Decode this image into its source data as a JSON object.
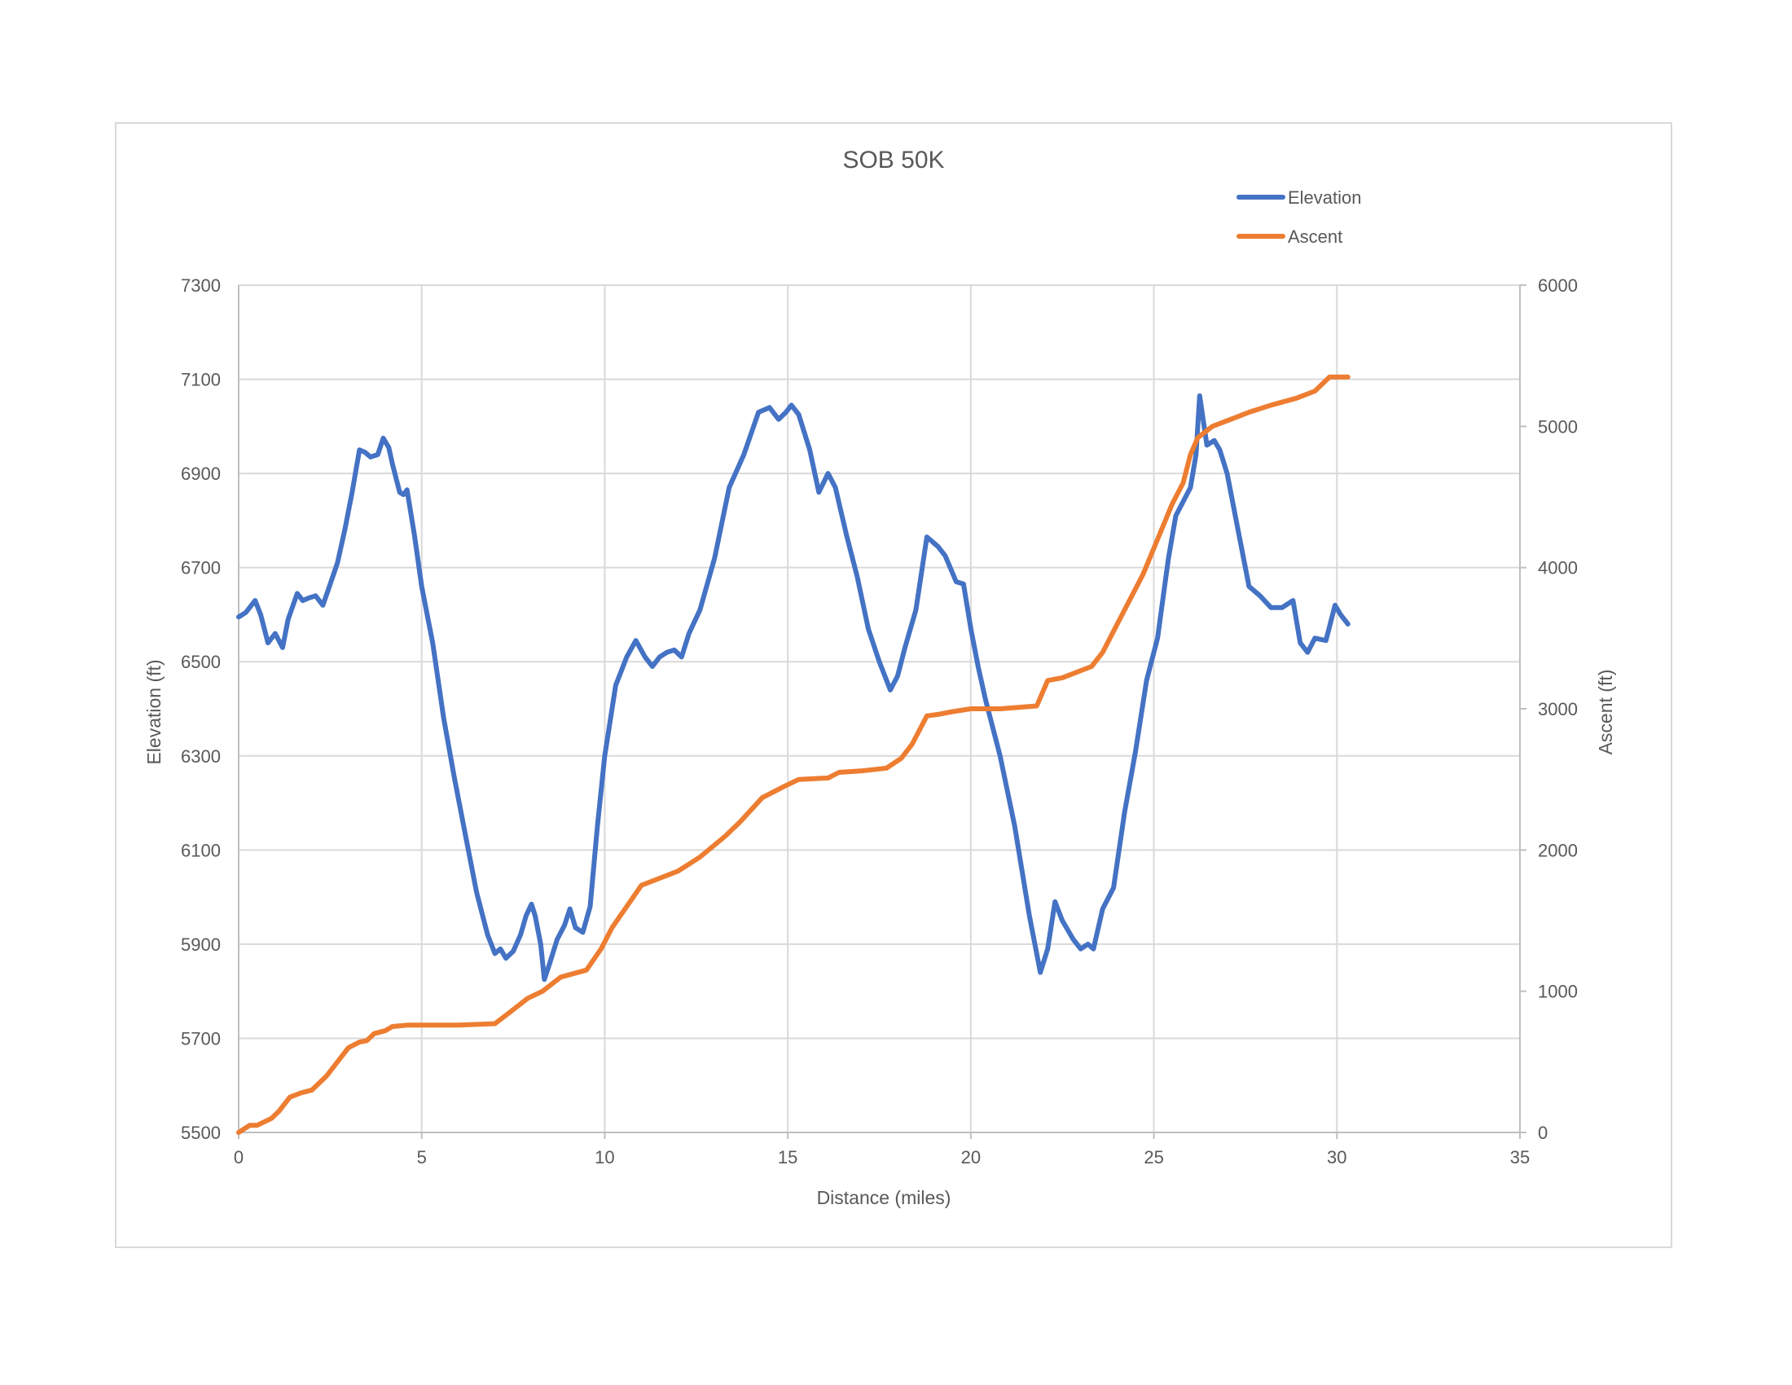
{
  "chart_data": {
    "type": "line",
    "title": "SOB 50K",
    "xlabel": "Distance (miles)",
    "ylabel": "Elevation (ft)",
    "y2label": "Ascent (ft)",
    "xlim": [
      0,
      35
    ],
    "ylim": [
      5500,
      7300
    ],
    "y2lim": [
      0,
      6000
    ],
    "xticks": [
      "0",
      "5",
      "10",
      "15",
      "20",
      "25",
      "30",
      "35"
    ],
    "yticks": [
      "5500",
      "5700",
      "5900",
      "6100",
      "6300",
      "6500",
      "6700",
      "6900",
      "7100",
      "7300"
    ],
    "y2ticks": [
      "0",
      "1000",
      "2000",
      "3000",
      "4000",
      "5000",
      "6000"
    ],
    "grid": true,
    "legend": "top-right",
    "series": [
      {
        "name": "Elevation",
        "axis": "left",
        "color": "#4472c4",
        "x": [
          0,
          0.2,
          0.45,
          0.6,
          0.8,
          1.0,
          1.2,
          1.35,
          1.6,
          1.75,
          1.9,
          2.1,
          2.3,
          2.5,
          2.7,
          2.9,
          3.1,
          3.3,
          3.45,
          3.6,
          3.8,
          3.95,
          4.1,
          4.2,
          4.4,
          4.5,
          4.6,
          4.8,
          5.0,
          5.3,
          5.6,
          5.9,
          6.2,
          6.5,
          6.8,
          7.0,
          7.15,
          7.3,
          7.5,
          7.7,
          7.85,
          8.0,
          8.1,
          8.25,
          8.35,
          8.5,
          8.7,
          8.9,
          9.05,
          9.2,
          9.4,
          9.6,
          9.8,
          10.0,
          10.3,
          10.6,
          10.85,
          11.1,
          11.3,
          11.5,
          11.7,
          11.9,
          12.1,
          12.3,
          12.6,
          13.0,
          13.4,
          13.8,
          14.2,
          14.5,
          14.75,
          14.95,
          15.1,
          15.3,
          15.6,
          15.85,
          16.1,
          16.3,
          16.6,
          16.9,
          17.2,
          17.5,
          17.8,
          18.0,
          18.2,
          18.5,
          18.8,
          19.1,
          19.3,
          19.6,
          19.8,
          20.0,
          20.2,
          20.4,
          20.8,
          21.2,
          21.6,
          21.9,
          22.1,
          22.3,
          22.5,
          22.8,
          23.0,
          23.2,
          23.35,
          23.6,
          23.9,
          24.2,
          24.5,
          24.8,
          25.1,
          25.4,
          25.6,
          25.8,
          26.0,
          26.15,
          26.25,
          26.45,
          26.65,
          26.8,
          27.0,
          27.3,
          27.6,
          27.9,
          28.2,
          28.5,
          28.8,
          29.0,
          29.2,
          29.4,
          29.7,
          29.95,
          30.1,
          30.3
        ],
        "y": [
          6595,
          6605,
          6630,
          6600,
          6540,
          6560,
          6530,
          6590,
          6645,
          6630,
          6635,
          6640,
          6620,
          6665,
          6710,
          6780,
          6860,
          6950,
          6945,
          6935,
          6940,
          6975,
          6955,
          6920,
          6860,
          6855,
          6865,
          6770,
          6660,
          6540,
          6380,
          6250,
          6130,
          6010,
          5920,
          5880,
          5890,
          5870,
          5885,
          5920,
          5960,
          5985,
          5960,
          5900,
          5825,
          5860,
          5910,
          5940,
          5975,
          5935,
          5925,
          5980,
          6150,
          6300,
          6450,
          6510,
          6545,
          6510,
          6490,
          6510,
          6520,
          6525,
          6510,
          6560,
          6610,
          6720,
          6870,
          6940,
          7030,
          7040,
          7015,
          7030,
          7045,
          7025,
          6950,
          6860,
          6900,
          6870,
          6770,
          6680,
          6570,
          6500,
          6440,
          6470,
          6530,
          6610,
          6765,
          6745,
          6725,
          6670,
          6665,
          6570,
          6490,
          6420,
          6300,
          6150,
          5960,
          5840,
          5890,
          5990,
          5950,
          5910,
          5890,
          5900,
          5890,
          5975,
          6020,
          6180,
          6310,
          6460,
          6550,
          6720,
          6810,
          6840,
          6870,
          6940,
          7065,
          6960,
          6970,
          6950,
          6900,
          6780,
          6660,
          6640,
          6615,
          6615,
          6630,
          6540,
          6520,
          6550,
          6545,
          6620,
          6600,
          6580
        ]
      },
      {
        "name": "Ascent",
        "axis": "right",
        "color": "#ed7d31",
        "x": [
          0,
          0.3,
          0.5,
          0.9,
          1.1,
          1.4,
          1.7,
          2.0,
          2.4,
          2.7,
          3.0,
          3.3,
          3.5,
          3.7,
          4.0,
          4.2,
          4.6,
          5.0,
          6.0,
          7.0,
          7.4,
          7.9,
          8.3,
          8.8,
          9.5,
          9.9,
          10.2,
          10.6,
          11.0,
          11.5,
          12.0,
          12.6,
          13.3,
          13.7,
          14.3,
          14.9,
          15.3,
          16.1,
          16.4,
          17.0,
          17.7,
          18.1,
          18.4,
          18.8,
          19.1,
          19.5,
          20.0,
          20.2,
          20.8,
          21.3,
          21.8,
          22.1,
          22.5,
          22.9,
          23.3,
          23.6,
          23.9,
          24.3,
          24.7,
          25.1,
          25.5,
          25.8,
          26.0,
          26.2,
          26.6,
          27.1,
          27.6,
          28.2,
          28.9,
          29.4,
          29.8,
          30.0,
          30.3
        ],
        "y": [
          0,
          50,
          50,
          100,
          150,
          250,
          280,
          300,
          400,
          500,
          600,
          640,
          650,
          700,
          720,
          750,
          760,
          760,
          760,
          770,
          850,
          950,
          1000,
          1100,
          1150,
          1300,
          1450,
          1600,
          1750,
          1800,
          1850,
          1950,
          2100,
          2200,
          2370,
          2450,
          2500,
          2510,
          2550,
          2560,
          2580,
          2650,
          2750,
          2950,
          2960,
          2980,
          3000,
          3000,
          3000,
          3010,
          3020,
          3200,
          3220,
          3260,
          3300,
          3400,
          3550,
          3750,
          3950,
          4200,
          4450,
          4600,
          4800,
          4920,
          5000,
          5050,
          5100,
          5150,
          5200,
          5250,
          5350,
          5350,
          5350
        ]
      }
    ]
  }
}
